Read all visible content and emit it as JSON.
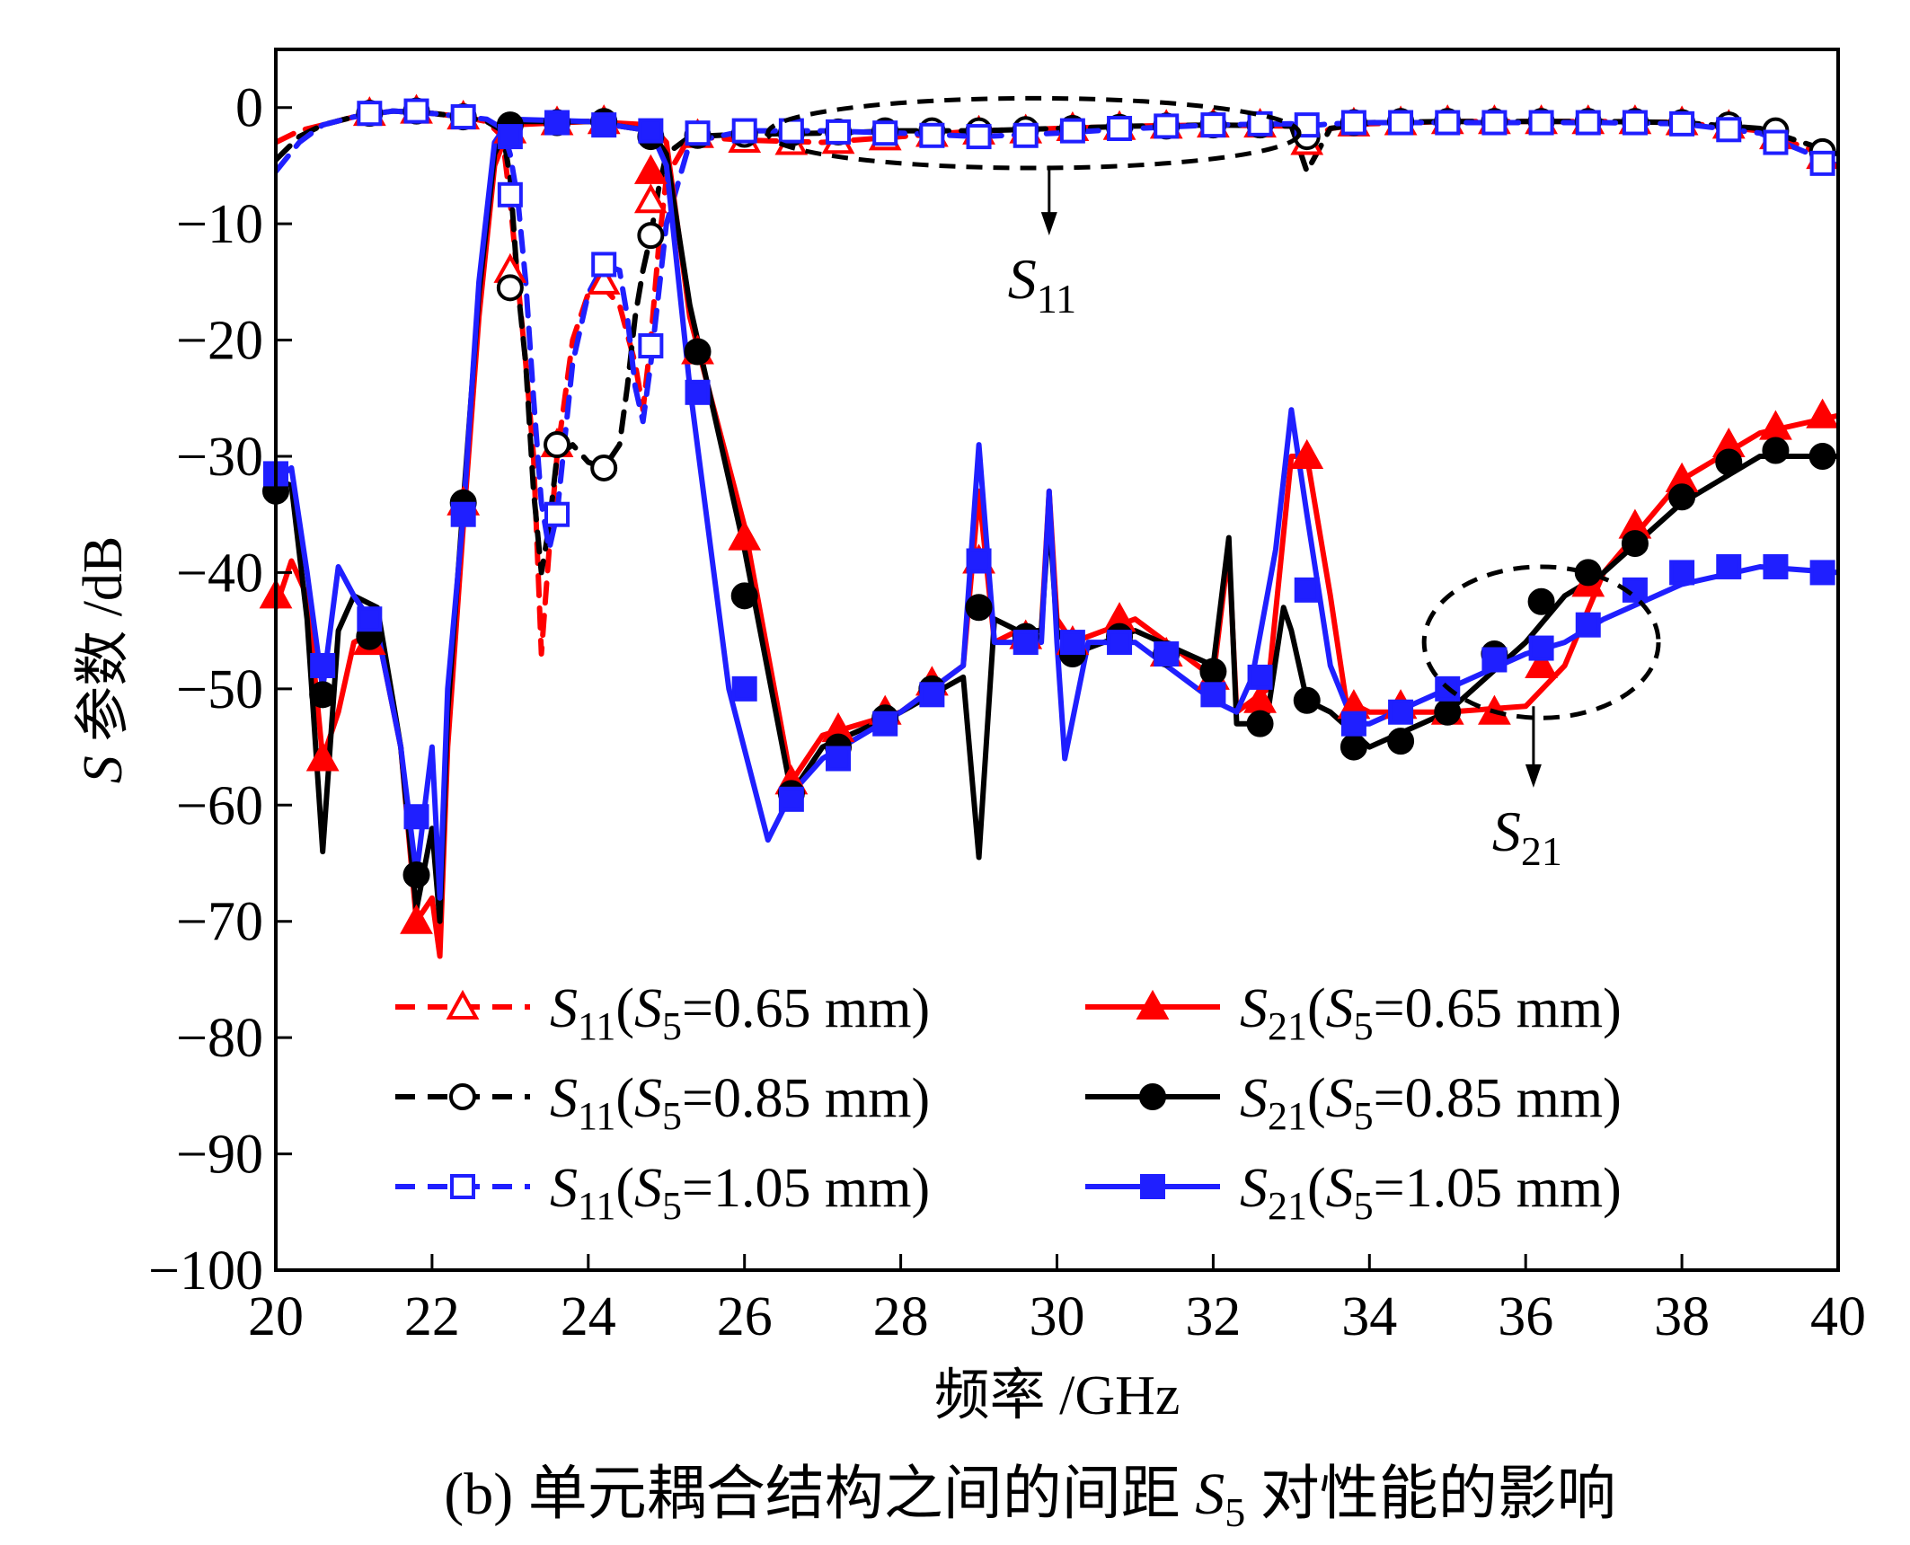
{
  "chart_data": {
    "type": "line",
    "title": "",
    "caption": "(b) 单元耦合结构之间的间距 S5 对性能的影响",
    "caption_parts": {
      "prefix": "(b) 单元耦合结构之间的间距 ",
      "var": "S",
      "sub": "5",
      "suffix": " 对性能的影响"
    },
    "xlabel": "频率 /GHz",
    "ylabel": "S 参数 /dB",
    "xlim": [
      20,
      40
    ],
    "ylim": [
      -100,
      5
    ],
    "xticks": [
      20,
      22,
      24,
      26,
      28,
      30,
      32,
      34,
      36,
      38,
      40
    ],
    "yticks": [
      0,
      -10,
      -20,
      -30,
      -40,
      -50,
      -60,
      -70,
      -80,
      -90,
      -100
    ],
    "ytick_labels": [
      "0",
      "−10",
      "−20",
      "−30",
      "−40",
      "−50",
      "−60",
      "−70",
      "−80",
      "−90",
      "−100"
    ],
    "grid": false,
    "legend_position": "lower-center, two columns",
    "annotations": [
      {
        "text": "S11",
        "main": "S",
        "sub": "11",
        "anchor_x": 29.9,
        "anchor_y": -11.0,
        "ellipse": {
          "cx": 29.7,
          "cy": -2.2,
          "rx": 3.4,
          "ry": 3.0
        },
        "arrow_from": [
          29.9,
          -5.0
        ],
        "arrow_to": [
          29.9,
          -11.0
        ]
      },
      {
        "text": "S21",
        "main": "S",
        "sub": "21",
        "anchor_x": 36.1,
        "anchor_y": -58.5,
        "ellipse": {
          "cx": 36.2,
          "cy": -46.0,
          "rx": 1.5,
          "ry": 6.5
        },
        "arrow_from": [
          36.1,
          -51.5
        ],
        "arrow_to": [
          36.1,
          -58.5
        ]
      }
    ],
    "series": [
      {
        "name": "S11(S5=0.65 mm)",
        "legend_main": "S",
        "legend_sub": "11",
        "legend_s5": "0.65 mm",
        "color": "#ff0000",
        "dash": true,
        "marker": "triangle-open",
        "x": [
          20.0,
          20.3,
          20.6,
          21.0,
          21.5,
          22.0,
          22.4,
          22.7,
          22.9,
          23.0,
          23.1,
          23.2,
          23.3,
          23.4,
          23.5,
          23.6,
          23.7,
          23.8,
          24.0,
          24.2,
          24.4,
          24.6,
          24.7,
          24.8,
          24.9,
          25.0,
          25.3,
          26.0,
          27.0,
          28.0,
          29.0,
          30.0,
          31.0,
          32.0,
          33.0,
          33.1,
          33.2,
          33.5,
          34.0,
          35.0,
          36.0,
          37.0,
          38.0,
          39.0,
          40.0
        ],
        "y": [
          -3.0,
          -2.0,
          -1.5,
          -0.8,
          -0.3,
          -0.5,
          -0.8,
          -1.2,
          -2.5,
          -8.0,
          -15.0,
          -22.0,
          -30.0,
          -47.0,
          -38.0,
          -30.0,
          -25.0,
          -20.0,
          -16.0,
          -15.5,
          -17.0,
          -22.0,
          -26.0,
          -20.0,
          -12.0,
          -6.0,
          -2.5,
          -2.8,
          -3.0,
          -2.5,
          -2.0,
          -1.8,
          -1.6,
          -1.5,
          -1.6,
          -2.5,
          -3.0,
          -1.8,
          -1.4,
          -1.2,
          -1.2,
          -1.2,
          -1.3,
          -2.0,
          -4.5
        ],
        "markers_x": [
          21.2,
          21.8,
          22.4,
          23.0,
          23.6,
          24.2,
          24.8,
          25.4,
          26.0,
          26.6,
          27.2,
          27.8,
          28.4,
          29.0,
          29.6,
          30.2,
          30.8,
          31.4,
          32.0,
          32.6,
          33.2,
          33.8,
          34.4,
          35.0,
          35.6,
          36.2,
          36.8,
          37.4,
          38.0,
          38.6,
          39.2,
          39.8
        ],
        "markers_y": [
          -0.5,
          -0.3,
          -0.8,
          -14.0,
          -29.0,
          -15.0,
          -8.0,
          -2.4,
          -2.8,
          -3.0,
          -2.9,
          -2.6,
          -2.3,
          -2.1,
          -2.0,
          -1.8,
          -1.7,
          -1.6,
          -1.5,
          -1.5,
          -3.0,
          -1.4,
          -1.3,
          -1.2,
          -1.2,
          -1.2,
          -1.2,
          -1.2,
          -1.3,
          -1.6,
          -2.5,
          -4.2
        ]
      },
      {
        "name": "S11(S5=0.85 mm)",
        "legend_main": "S",
        "legend_sub": "11",
        "legend_s5": "0.85 mm",
        "color": "#000000",
        "dash": true,
        "marker": "circle-open",
        "x": [
          20.0,
          20.3,
          20.6,
          21.0,
          21.5,
          22.0,
          22.4,
          22.7,
          22.9,
          23.0,
          23.1,
          23.2,
          23.3,
          23.4,
          23.5,
          23.6,
          23.8,
          24.0,
          24.2,
          24.4,
          24.5,
          24.6,
          24.7,
          24.8,
          24.9,
          25.0,
          25.3,
          26.0,
          27.0,
          28.0,
          29.0,
          30.0,
          31.0,
          32.0,
          33.0,
          33.1,
          33.2,
          33.5,
          34.0,
          35.0,
          36.0,
          37.0,
          38.0,
          39.0,
          40.0
        ],
        "y": [
          -4.5,
          -2.5,
          -1.5,
          -0.8,
          -0.3,
          -0.5,
          -0.8,
          -1.2,
          -2.0,
          -6.0,
          -15.5,
          -22.0,
          -33.0,
          -40.0,
          -36.0,
          -30.0,
          -29.0,
          -30.5,
          -31.0,
          -29.0,
          -24.0,
          -18.0,
          -14.0,
          -11.0,
          -7.0,
          -4.0,
          -2.5,
          -2.3,
          -2.2,
          -2.0,
          -2.0,
          -1.8,
          -1.6,
          -1.5,
          -1.6,
          -3.5,
          -5.5,
          -1.8,
          -1.3,
          -1.2,
          -1.2,
          -1.2,
          -1.3,
          -1.8,
          -4.0
        ],
        "markers_x": [
          21.2,
          21.8,
          22.4,
          23.0,
          23.6,
          24.2,
          24.8,
          25.4,
          26.0,
          26.6,
          27.2,
          27.8,
          28.4,
          29.0,
          29.6,
          30.2,
          30.8,
          31.4,
          32.0,
          32.6,
          33.2,
          33.8,
          34.4,
          35.0,
          35.6,
          36.2,
          36.8,
          37.4,
          38.0,
          38.6,
          39.2,
          39.8
        ],
        "markers_y": [
          -0.5,
          -0.3,
          -0.8,
          -15.5,
          -29.0,
          -31.0,
          -11.0,
          -2.4,
          -2.3,
          -2.2,
          -2.1,
          -2.0,
          -2.0,
          -2.0,
          -1.9,
          -1.8,
          -1.7,
          -1.6,
          -1.5,
          -1.5,
          -2.5,
          -1.3,
          -1.2,
          -1.2,
          -1.2,
          -1.2,
          -1.2,
          -1.2,
          -1.3,
          -1.5,
          -2.0,
          -3.8
        ]
      },
      {
        "name": "S11(S5=1.05 mm)",
        "legend_main": "S",
        "legend_sub": "11",
        "legend_s5": "1.05 mm",
        "color": "#1f1fff",
        "dash": true,
        "marker": "square-open",
        "x": [
          20.0,
          20.3,
          20.6,
          21.0,
          21.5,
          22.0,
          22.4,
          22.7,
          22.9,
          23.0,
          23.1,
          23.2,
          23.3,
          23.4,
          23.5,
          23.6,
          23.8,
          24.0,
          24.2,
          24.4,
          24.5,
          24.6,
          24.7,
          24.8,
          24.9,
          25.0,
          25.3,
          26.0,
          27.0,
          28.0,
          29.0,
          30.0,
          31.0,
          32.0,
          33.0,
          33.1,
          33.2,
          33.5,
          34.0,
          35.0,
          36.0,
          37.0,
          38.0,
          39.0,
          40.0
        ],
        "y": [
          -5.5,
          -3.0,
          -1.5,
          -0.8,
          -0.3,
          -0.5,
          -0.8,
          -1.0,
          -1.8,
          -4.0,
          -8.0,
          -15.0,
          -25.0,
          -34.0,
          -38.0,
          -35.0,
          -22.0,
          -16.0,
          -13.5,
          -14.0,
          -18.0,
          -24.0,
          -27.0,
          -22.0,
          -16.0,
          -10.0,
          -3.0,
          -2.0,
          -2.0,
          -2.2,
          -2.5,
          -2.2,
          -1.8,
          -1.5,
          -1.4,
          -1.5,
          -1.6,
          -1.4,
          -1.3,
          -1.3,
          -1.3,
          -1.3,
          -1.4,
          -2.2,
          -5.0
        ],
        "markers_x": [
          21.2,
          21.8,
          22.4,
          23.0,
          23.6,
          24.2,
          24.8,
          25.4,
          26.0,
          26.6,
          27.2,
          27.8,
          28.4,
          29.0,
          29.6,
          30.2,
          30.8,
          31.4,
          32.0,
          32.6,
          33.2,
          33.8,
          34.4,
          35.0,
          35.6,
          36.2,
          36.8,
          37.4,
          38.0,
          38.6,
          39.2,
          39.8
        ],
        "markers_y": [
          -0.5,
          -0.3,
          -0.8,
          -7.5,
          -35.0,
          -13.5,
          -20.5,
          -2.2,
          -2.0,
          -2.0,
          -2.1,
          -2.2,
          -2.4,
          -2.5,
          -2.4,
          -2.0,
          -1.8,
          -1.6,
          -1.5,
          -1.4,
          -1.5,
          -1.3,
          -1.3,
          -1.3,
          -1.3,
          -1.3,
          -1.3,
          -1.3,
          -1.4,
          -1.9,
          -3.0,
          -4.8
        ]
      },
      {
        "name": "S21(S5=0.65 mm)",
        "legend_main": "S",
        "legend_sub": "21",
        "legend_s5": "0.65 mm",
        "color": "#ff0000",
        "dash": false,
        "marker": "triangle-filled",
        "x": [
          20.0,
          20.2,
          20.4,
          20.6,
          20.8,
          21.0,
          21.3,
          21.6,
          21.8,
          22.0,
          22.1,
          22.2,
          22.4,
          22.6,
          22.8,
          23.0,
          24.0,
          24.8,
          25.0,
          25.3,
          26.0,
          26.6,
          27.0,
          28.0,
          28.8,
          29.0,
          29.2,
          29.5,
          29.8,
          29.9,
          30.0,
          30.2,
          31.0,
          32.0,
          32.2,
          32.3,
          32.5,
          32.7,
          33.0,
          33.2,
          33.5,
          33.7,
          34.0,
          35.0,
          36.0,
          36.5,
          37.0,
          38.0,
          39.0,
          40.0
        ],
        "y": [
          -43.0,
          -39.0,
          -42.0,
          -56.0,
          -52.0,
          -46.0,
          -45.0,
          -55.0,
          -70.0,
          -68.0,
          -73.0,
          -55.0,
          -36.0,
          -18.0,
          -5.0,
          -1.5,
          -1.2,
          -1.5,
          -3.0,
          -18.0,
          -36.0,
          -58.0,
          -54.0,
          -52.0,
          -48.0,
          -33.0,
          -46.0,
          -45.0,
          -45.0,
          -33.0,
          -44.0,
          -46.0,
          -44.0,
          -49.0,
          -38.0,
          -52.0,
          -51.0,
          -50.0,
          -30.0,
          -30.0,
          -42.0,
          -51.0,
          -52.0,
          -52.0,
          -51.5,
          -48.0,
          -40.0,
          -32.0,
          -28.0,
          -26.5
        ],
        "markers_x": [
          20.0,
          20.6,
          21.2,
          21.8,
          22.4,
          23.0,
          23.6,
          24.2,
          24.8,
          25.4,
          26.0,
          26.6,
          27.2,
          27.8,
          28.4,
          29.0,
          29.6,
          30.2,
          30.8,
          31.4,
          32.0,
          32.6,
          33.2,
          33.8,
          34.4,
          35.0,
          35.6,
          36.2,
          36.8,
          37.4,
          38.0,
          38.6,
          39.2,
          39.8
        ],
        "markers_y": [
          -42.0,
          -56.0,
          -46.0,
          -70.0,
          -34.0,
          -2.0,
          -1.3,
          -1.2,
          -5.5,
          -21.0,
          -37.0,
          -58.0,
          -53.5,
          -52.0,
          -49.5,
          -39.0,
          -45.5,
          -46.0,
          -44.0,
          -47.0,
          -49.0,
          -51.0,
          -30.0,
          -51.5,
          -51.5,
          -52.0,
          -52.0,
          -48.0,
          -41.0,
          -36.0,
          -32.0,
          -29.0,
          -27.5,
          -26.5
        ]
      },
      {
        "name": "S21(S5=0.85 mm)",
        "legend_main": "S",
        "legend_sub": "21",
        "legend_s5": "0.85 mm",
        "color": "#000000",
        "dash": false,
        "marker": "circle-filled",
        "x": [
          20.0,
          20.2,
          20.4,
          20.6,
          20.8,
          21.0,
          21.3,
          21.6,
          21.8,
          22.0,
          22.1,
          22.2,
          22.4,
          22.6,
          22.8,
          23.0,
          24.0,
          24.8,
          25.0,
          25.3,
          26.0,
          26.6,
          27.0,
          28.0,
          28.8,
          29.0,
          29.2,
          29.5,
          29.8,
          29.9,
          30.0,
          30.2,
          31.0,
          32.0,
          32.2,
          32.3,
          32.5,
          32.7,
          32.9,
          33.0,
          33.2,
          33.5,
          34.0,
          35.0,
          36.0,
          36.5,
          37.0,
          38.0,
          39.0,
          40.0
        ],
        "y": [
          -32.0,
          -32.5,
          -44.0,
          -64.0,
          -45.0,
          -42.0,
          -43.0,
          -55.0,
          -69.0,
          -62.0,
          -70.0,
          -52.0,
          -34.0,
          -16.0,
          -4.0,
          -1.2,
          -1.2,
          -2.0,
          -4.0,
          -17.0,
          -38.0,
          -59.0,
          -55.0,
          -52.0,
          -49.0,
          -64.5,
          -44.0,
          -45.0,
          -45.0,
          -35.0,
          -45.0,
          -47.0,
          -45.0,
          -48.0,
          -37.0,
          -53.0,
          -53.0,
          -52.0,
          -43.0,
          -45.0,
          -51.0,
          -52.0,
          -55.0,
          -52.0,
          -46.0,
          -42.0,
          -40.0,
          -34.0,
          -30.0,
          -30.0
        ],
        "markers_x": [
          20.0,
          20.6,
          21.2,
          21.8,
          22.4,
          23.0,
          23.6,
          24.2,
          24.8,
          25.4,
          26.0,
          26.6,
          27.2,
          27.8,
          28.4,
          29.0,
          29.6,
          30.2,
          30.8,
          31.4,
          32.0,
          32.6,
          33.2,
          33.8,
          34.4,
          35.0,
          35.6,
          36.2,
          36.8,
          37.4,
          38.0,
          38.6,
          39.2,
          39.8
        ],
        "markers_y": [
          -33.0,
          -50.5,
          -45.5,
          -66.0,
          -34.0,
          -1.5,
          -1.3,
          -1.2,
          -2.5,
          -21.0,
          -42.0,
          -59.0,
          -55.0,
          -52.5,
          -50.0,
          -43.0,
          -45.5,
          -47.0,
          -45.5,
          -47.0,
          -48.5,
          -53.0,
          -51.0,
          -55.0,
          -54.5,
          -52.0,
          -47.0,
          -42.5,
          -40.0,
          -37.5,
          -33.5,
          -30.5,
          -29.5,
          -30.0
        ]
      },
      {
        "name": "S21(S5=1.05 mm)",
        "legend_main": "S",
        "legend_sub": "21",
        "legend_s5": "1.05 mm",
        "color": "#1f1fff",
        "dash": false,
        "marker": "square-filled",
        "x": [
          20.0,
          20.2,
          20.4,
          20.6,
          20.8,
          21.0,
          21.3,
          21.6,
          21.8,
          22.0,
          22.1,
          22.2,
          22.4,
          22.6,
          22.8,
          23.0,
          24.0,
          24.8,
          25.0,
          25.3,
          25.8,
          26.3,
          26.6,
          27.0,
          28.0,
          28.8,
          29.0,
          29.2,
          29.5,
          29.8,
          29.9,
          30.0,
          30.1,
          30.4,
          31.0,
          32.0,
          32.3,
          32.5,
          32.8,
          33.0,
          33.2,
          33.5,
          33.8,
          34.0,
          35.0,
          36.0,
          36.5,
          37.0,
          38.0,
          39.0,
          40.0
        ],
        "y": [
          -32.0,
          -31.0,
          -40.0,
          -50.0,
          -39.5,
          -42.0,
          -45.0,
          -55.0,
          -66.0,
          -55.0,
          -68.0,
          -50.0,
          -35.0,
          -15.0,
          -3.0,
          -1.0,
          -1.2,
          -2.0,
          -5.0,
          -24.0,
          -50.0,
          -63.0,
          -59.0,
          -56.0,
          -52.0,
          -48.0,
          -29.0,
          -46.0,
          -46.0,
          -46.0,
          -33.0,
          -46.0,
          -56.0,
          -46.0,
          -46.0,
          -51.0,
          -52.0,
          -49.0,
          -38.0,
          -26.0,
          -35.0,
          -48.0,
          -53.0,
          -53.0,
          -50.0,
          -47.0,
          -46.0,
          -44.0,
          -41.0,
          -39.5,
          -40.0
        ],
        "markers_x": [
          20.0,
          20.6,
          21.2,
          21.8,
          22.4,
          23.0,
          23.6,
          24.2,
          24.8,
          25.4,
          26.0,
          26.6,
          27.2,
          27.8,
          28.4,
          29.0,
          29.6,
          30.2,
          30.8,
          31.4,
          32.0,
          32.6,
          33.2,
          33.8,
          34.4,
          35.0,
          35.6,
          36.2,
          36.8,
          37.4,
          38.0,
          38.6,
          39.2,
          39.8
        ],
        "markers_y": [
          -31.5,
          -48.0,
          -44.0,
          -61.0,
          -35.0,
          -2.5,
          -1.3,
          -1.5,
          -2.0,
          -24.5,
          -50.0,
          -59.5,
          -56.0,
          -53.0,
          -50.5,
          -39.0,
          -46.0,
          -46.0,
          -46.0,
          -47.0,
          -50.5,
          -49.0,
          -41.5,
          -53.0,
          -52.0,
          -50.0,
          -47.5,
          -46.5,
          -44.5,
          -41.5,
          -40.0,
          -39.5,
          -39.5,
          -40.0
        ]
      }
    ]
  }
}
